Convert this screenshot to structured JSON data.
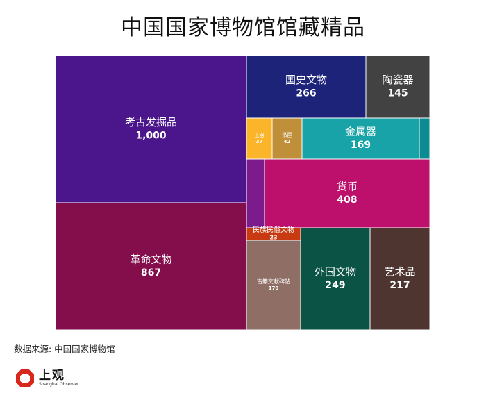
{
  "chart_data": {
    "type": "treemap",
    "title": "中国国家博物馆馆藏精品",
    "items": [
      {
        "name": "考古发掘品",
        "value": 1000,
        "value_label": "1,000",
        "color": "#4b158b"
      },
      {
        "name": "革命文物",
        "value": 867,
        "value_label": "867",
        "color": "#840e4b"
      },
      {
        "name": "国史文物",
        "value": 266,
        "value_label": "266",
        "color": "#1e237a"
      },
      {
        "name": "陶瓷器",
        "value": 145,
        "value_label": "145",
        "color": "#424242"
      },
      {
        "name": "玉器",
        "value": 37,
        "value_label": "37",
        "color": "#fbb52a"
      },
      {
        "name": "书画",
        "value": 42,
        "value_label": "42",
        "color": "#bf8f3a"
      },
      {
        "name": "金属器",
        "value": 169,
        "value_label": "169",
        "color": "#17a3a7"
      },
      {
        "name": "",
        "value": 10,
        "value_label": "",
        "color": "#0e8b92"
      },
      {
        "name": "",
        "value": 30,
        "value_label": "",
        "color": "#7c1c8c"
      },
      {
        "name": "货币",
        "value": 408,
        "value_label": "408",
        "color": "#bd0f6c"
      },
      {
        "name": "民族民俗文物",
        "value": 23,
        "value_label": "23",
        "color": "#c73a12"
      },
      {
        "name": "古籍文献碑帖",
        "value": 170,
        "value_label": "170",
        "color": "#8e6e65"
      },
      {
        "name": "外国文物",
        "value": 249,
        "value_label": "249",
        "color": "#0b5345"
      },
      {
        "name": "艺术品",
        "value": 217,
        "value_label": "217",
        "color": "#4e3530"
      }
    ]
  },
  "source": "数据来源: 中国国家博物馆",
  "logo": {
    "name_cn": "上观",
    "name_en": "Shanghai Observer",
    "color": "#d8271c"
  }
}
